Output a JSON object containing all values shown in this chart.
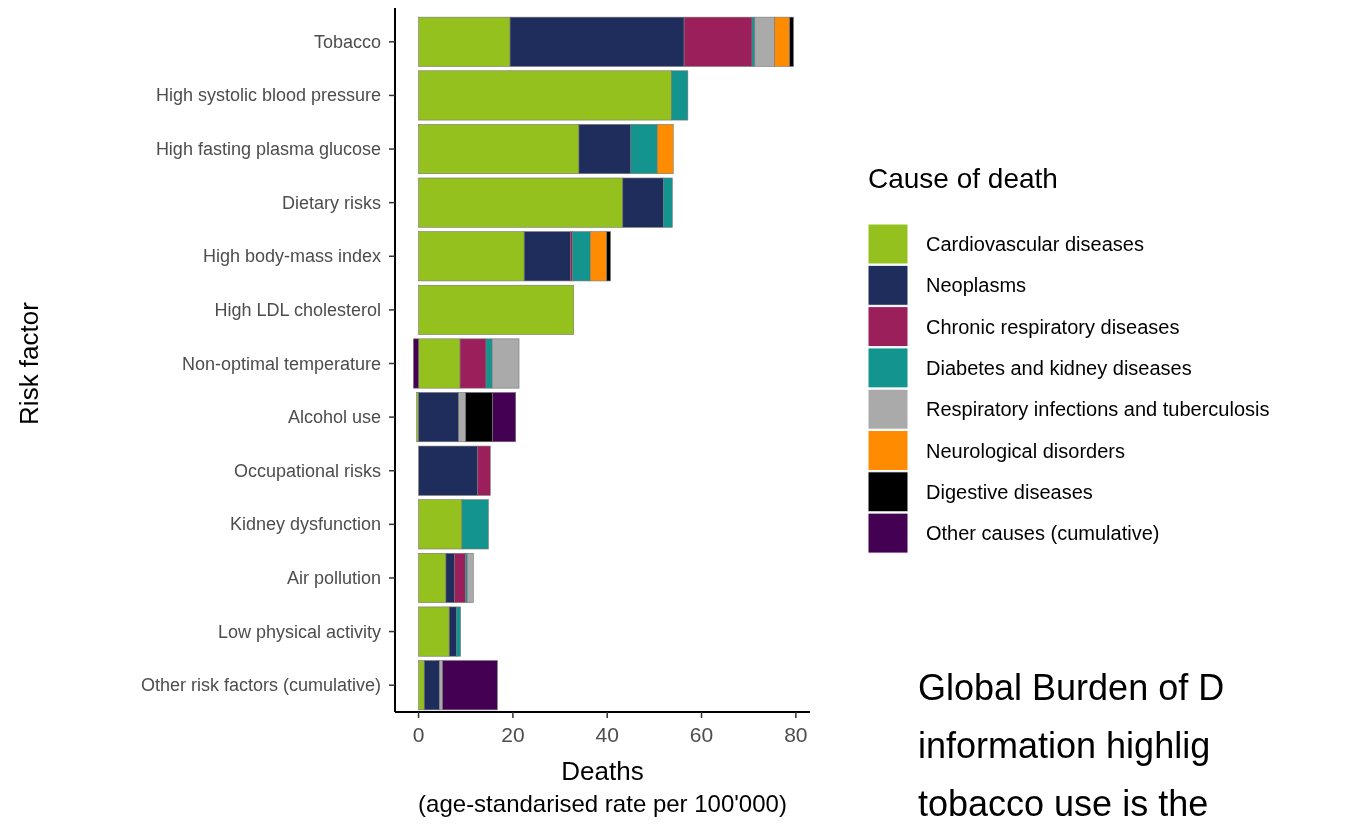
{
  "chart_data": {
    "type": "bar",
    "orientation": "horizontal",
    "stacked": true,
    "categories": [
      "Tobacco",
      "High systolic blood pressure",
      "High fasting plasma glucose",
      "Dietary risks",
      "High body-mass index",
      "High LDL cholesterol",
      "Non-optimal temperature",
      "Alcohol use",
      "Occupational risks",
      "Kidney dysfunction",
      "Air pollution",
      "Low physical activity",
      "Other risk factors (cumulative)"
    ],
    "series": [
      {
        "name": "Cardiovascular diseases",
        "color": "#95c11f",
        "values": [
          19.4,
          53.6,
          34.0,
          43.3,
          22.4,
          32.9,
          8.8,
          -0.4,
          null,
          9.2,
          5.8,
          6.5,
          1.2
        ]
      },
      {
        "name": "Neoplasms",
        "color": "#1f2d5c",
        "values": [
          36.9,
          null,
          11.0,
          8.6,
          9.8,
          null,
          null,
          8.5,
          12.5,
          null,
          1.8,
          1.5,
          3.2
        ]
      },
      {
        "name": "Chronic respiratory diseases",
        "color": "#9b1f5a",
        "values": [
          14.4,
          null,
          null,
          null,
          0.4,
          null,
          5.5,
          null,
          2.7,
          null,
          2.3,
          null,
          null
        ]
      },
      {
        "name": "Diabetes and kidney diseases",
        "color": "#13948f",
        "values": [
          0.6,
          3.5,
          5.6,
          1.9,
          3.8,
          null,
          1.3,
          null,
          null,
          5.6,
          0.4,
          0.9,
          null
        ]
      },
      {
        "name": "Respiratory infections and tuberculosis",
        "color": "#aaaaaa",
        "values": [
          4.2,
          null,
          null,
          null,
          null,
          null,
          5.7,
          1.5,
          null,
          null,
          1.3,
          null,
          0.7
        ]
      },
      {
        "name": "Neurological disorders",
        "color": "#ff8c00",
        "values": [
          3.2,
          null,
          3.4,
          null,
          3.5,
          null,
          null,
          null,
          null,
          null,
          null,
          null,
          null
        ]
      },
      {
        "name": "Digestive diseases",
        "color": "#000000",
        "values": [
          0.8,
          null,
          null,
          null,
          0.8,
          null,
          null,
          5.7,
          null,
          null,
          null,
          null,
          null
        ]
      },
      {
        "name": "Other causes (cumulative)",
        "color": "#440154",
        "values": [
          null,
          null,
          null,
          null,
          null,
          null,
          -1.1,
          4.9,
          null,
          null,
          null,
          null,
          11.6
        ]
      }
    ],
    "xlim": [
      -5,
      83
    ],
    "xticks": [
      0,
      20,
      40,
      60,
      80
    ],
    "xlabel": "Deaths\n(age-standarised rate per 100'000)",
    "ylabel": "Risk factor",
    "legend_title": "Cause of death",
    "legend": "right",
    "grid": false,
    "annotations": [
      "Global Burden of D\ninformation highlig\ntobacco use is the"
    ]
  }
}
